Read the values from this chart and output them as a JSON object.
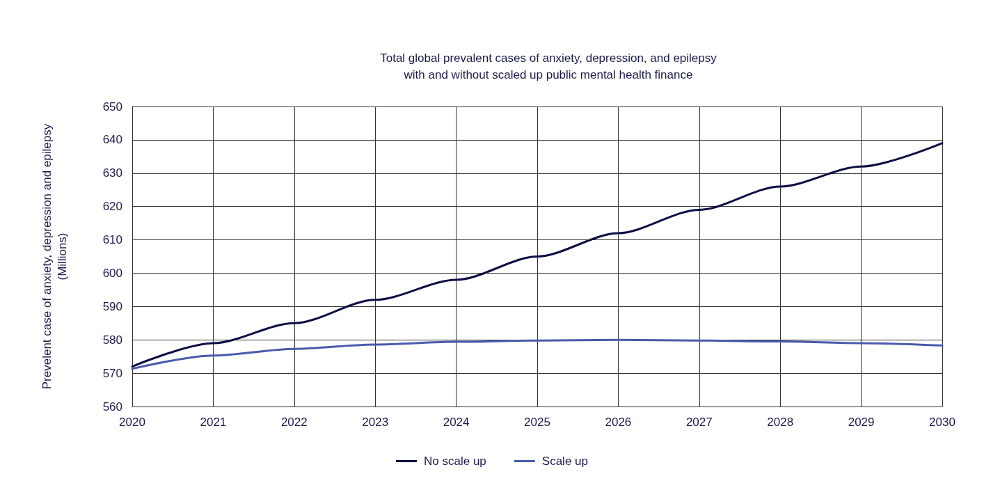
{
  "chart_data": {
    "type": "line",
    "title": "Total global prevalent cases of anxiety, depression, and epilepsy\nwith and without scaled up public mental health finance",
    "ylabel": "Prevelent case of anxiety, depression and epilepsy\n(Millions)",
    "x": [
      2020,
      2021,
      2022,
      2023,
      2024,
      2025,
      2026,
      2027,
      2028,
      2029,
      2030
    ],
    "series": [
      {
        "name": "No scale up",
        "color": "#0d0d45",
        "values": [
          572,
          579,
          585,
          592,
          598,
          605,
          612,
          619,
          626,
          632,
          639
        ]
      },
      {
        "name": "Scale up",
        "color": "#4a5aad",
        "values": [
          571.3,
          575.3,
          577.3,
          578.6,
          579.4,
          579.8,
          580,
          579.8,
          579.5,
          579,
          578.3
        ]
      }
    ],
    "xlim": [
      2020,
      2030
    ],
    "xticks": [
      2020,
      2021,
      2022,
      2023,
      2024,
      2025,
      2026,
      2027,
      2028,
      2029,
      2030
    ],
    "ylim": [
      560,
      650
    ],
    "yticks": [
      560,
      570,
      580,
      590,
      600,
      610,
      620,
      630,
      640,
      650
    ],
    "grid": true,
    "legend": "bottom",
    "marker": "none",
    "line_style": "solid"
  }
}
